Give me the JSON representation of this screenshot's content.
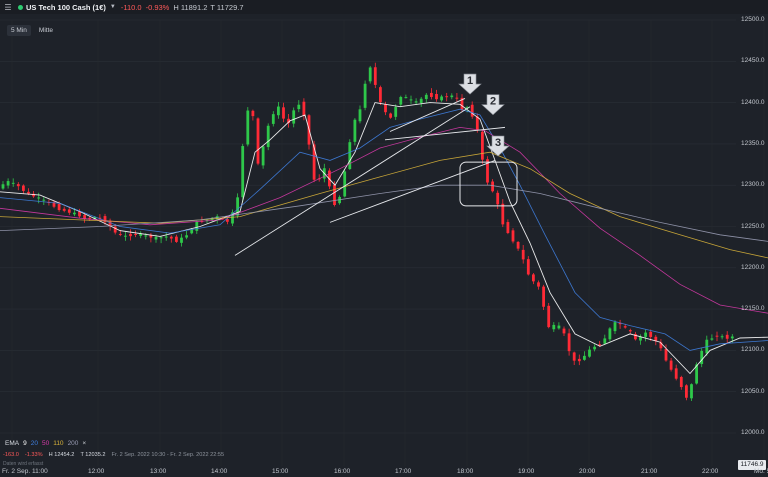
{
  "header": {
    "menu_icon": "hamburger-menu-icon",
    "status_color": "#2ecc71",
    "instrument": "US Tech 100 Cash (1€)",
    "change": "-110.0",
    "change_pct": "-0.93%",
    "high": "H 11891.2",
    "low": "T 11729.7"
  },
  "timeframes": [
    {
      "label": "5 Min",
      "active": true
    },
    {
      "label": "Mitte",
      "active": false
    }
  ],
  "legend": {
    "ema_label": "EMA",
    "periods": [
      {
        "value": "9",
        "color": "#ffffff"
      },
      {
        "value": "20",
        "color": "#3f7fe0"
      },
      {
        "value": "50",
        "color": "#d63aa8"
      },
      {
        "value": "110",
        "color": "#d8b23a"
      },
      {
        "value": "200",
        "color": "#9a9db5"
      }
    ],
    "close_glyph": "×"
  },
  "stats": {
    "change": "-163.0",
    "change_pct": "-1.33%",
    "high": "H 12454.2",
    "low": "T 12035.2",
    "range": "Fr. 2 Sep. 2022 10:30 - Fr. 2 Sep. 2022 22:55"
  },
  "note": "Daten wird erfasst",
  "last_price": "11746.9",
  "chart_data": {
    "type": "candlestick",
    "interval": "5 Min",
    "x_labels": [
      "Fr. 2 Sep. 11:00",
      "12:00",
      "13:00",
      "14:00",
      "15:00",
      "16:00",
      "17:00",
      "18:00",
      "19:00",
      "20:00",
      "21:00",
      "22:00",
      "Mo. 5"
    ],
    "y_ticks": [
      "12500.0",
      "12450.0",
      "12400.0",
      "12350.0",
      "12300.0",
      "12250.0",
      "12200.0",
      "12150.0",
      "12100.0",
      "12050.0",
      "12000.0"
    ],
    "ylim": [
      11990,
      12510
    ],
    "colors": {
      "up": "#2ec84a",
      "down": "#ff2a36"
    },
    "path": [
      [
        0,
        12295
      ],
      [
        10,
        12305
      ],
      [
        20,
        12300
      ],
      [
        30,
        12290
      ],
      [
        40,
        12285
      ],
      [
        50,
        12280
      ],
      [
        60,
        12272
      ],
      [
        70,
        12268
      ],
      [
        80,
        12265
      ],
      [
        90,
        12258
      ],
      [
        100,
        12262
      ],
      [
        110,
        12255
      ],
      [
        120,
        12240
      ],
      [
        130,
        12238
      ],
      [
        140,
        12242
      ],
      [
        150,
        12238
      ],
      [
        160,
        12236
      ],
      [
        170,
        12238
      ],
      [
        180,
        12232
      ],
      [
        190,
        12240
      ],
      [
        200,
        12255
      ],
      [
        210,
        12258
      ],
      [
        220,
        12262
      ],
      [
        230,
        12255
      ],
      [
        240,
        12275
      ],
      [
        245,
        12340
      ],
      [
        250,
        12390
      ],
      [
        255,
        12395
      ],
      [
        258,
        12360
      ],
      [
        262,
        12315
      ],
      [
        268,
        12360
      ],
      [
        275,
        12385
      ],
      [
        282,
        12395
      ],
      [
        290,
        12370
      ],
      [
        300,
        12400
      ],
      [
        305,
        12395
      ],
      [
        310,
        12370
      ],
      [
        315,
        12320
      ],
      [
        320,
        12290
      ],
      [
        325,
        12330
      ],
      [
        330,
        12310
      ],
      [
        335,
        12285
      ],
      [
        340,
        12270
      ],
      [
        345,
        12300
      ],
      [
        350,
        12330
      ],
      [
        355,
        12370
      ],
      [
        360,
        12385
      ],
      [
        365,
        12395
      ],
      [
        370,
        12440
      ],
      [
        375,
        12445
      ],
      [
        380,
        12410
      ],
      [
        385,
        12395
      ],
      [
        390,
        12385
      ],
      [
        395,
        12380
      ],
      [
        400,
        12400
      ],
      [
        405,
        12410
      ],
      [
        410,
        12405
      ],
      [
        420,
        12400
      ],
      [
        430,
        12410
      ],
      [
        440,
        12405
      ],
      [
        450,
        12408
      ],
      [
        458,
        12408
      ],
      [
        462,
        12400
      ],
      [
        466,
        12390
      ],
      [
        470,
        12395
      ],
      [
        475,
        12385
      ],
      [
        480,
        12370
      ],
      [
        484,
        12340
      ],
      [
        487,
        12320
      ],
      [
        490,
        12305
      ],
      [
        495,
        12295
      ],
      [
        500,
        12280
      ],
      [
        505,
        12255
      ],
      [
        510,
        12245
      ],
      [
        515,
        12235
      ],
      [
        520,
        12225
      ],
      [
        525,
        12215
      ],
      [
        530,
        12195
      ],
      [
        535,
        12185
      ],
      [
        540,
        12180
      ],
      [
        545,
        12170
      ],
      [
        548,
        12140
      ],
      [
        552,
        12128
      ],
      [
        558,
        12130
      ],
      [
        565,
        12128
      ],
      [
        572,
        12100
      ],
      [
        578,
        12085
      ],
      [
        585,
        12090
      ],
      [
        592,
        12100
      ],
      [
        598,
        12105
      ],
      [
        605,
        12108
      ],
      [
        610,
        12120
      ],
      [
        615,
        12130
      ],
      [
        620,
        12135
      ],
      [
        625,
        12130
      ],
      [
        630,
        12125
      ],
      [
        636,
        12120
      ],
      [
        640,
        12108
      ],
      [
        645,
        12120
      ],
      [
        650,
        12122
      ],
      [
        655,
        12115
      ],
      [
        660,
        12110
      ],
      [
        665,
        12100
      ],
      [
        670,
        12085
      ],
      [
        675,
        12075
      ],
      [
        680,
        12065
      ],
      [
        685,
        12055
      ],
      [
        690,
        12042
      ],
      [
        695,
        12060
      ],
      [
        700,
        12085
      ],
      [
        705,
        12100
      ],
      [
        710,
        12112
      ],
      [
        715,
        12115
      ],
      [
        720,
        12118
      ],
      [
        730,
        12115
      ],
      [
        740,
        12118
      ],
      [
        750,
        12117
      ],
      [
        760,
        12118
      ],
      [
        768,
        12117
      ]
    ],
    "ema": [
      {
        "period": "9",
        "color": "#ffffff",
        "points": [
          [
            0,
            12292
          ],
          [
            40,
            12288
          ],
          [
            80,
            12268
          ],
          [
            120,
            12245
          ],
          [
            160,
            12238
          ],
          [
            200,
            12250
          ],
          [
            240,
            12268
          ],
          [
            255,
            12340
          ],
          [
            270,
            12355
          ],
          [
            290,
            12378
          ],
          [
            305,
            12385
          ],
          [
            320,
            12320
          ],
          [
            335,
            12300
          ],
          [
            355,
            12340
          ],
          [
            375,
            12400
          ],
          [
            400,
            12395
          ],
          [
            430,
            12400
          ],
          [
            460,
            12398
          ],
          [
            480,
            12380
          ],
          [
            495,
            12330
          ],
          [
            510,
            12280
          ],
          [
            530,
            12230
          ],
          [
            550,
            12170
          ],
          [
            575,
            12120
          ],
          [
            600,
            12105
          ],
          [
            630,
            12120
          ],
          [
            660,
            12110
          ],
          [
            690,
            12072
          ],
          [
            710,
            12100
          ],
          [
            740,
            12115
          ],
          [
            768,
            12116
          ]
        ]
      },
      {
        "period": "20",
        "color": "#3f7fe0",
        "points": [
          [
            0,
            12285
          ],
          [
            60,
            12278
          ],
          [
            120,
            12250
          ],
          [
            170,
            12242
          ],
          [
            220,
            12252
          ],
          [
            260,
            12295
          ],
          [
            300,
            12340
          ],
          [
            330,
            12330
          ],
          [
            360,
            12345
          ],
          [
            390,
            12370
          ],
          [
            420,
            12380
          ],
          [
            460,
            12392
          ],
          [
            480,
            12385
          ],
          [
            500,
            12345
          ],
          [
            520,
            12300
          ],
          [
            545,
            12240
          ],
          [
            575,
            12170
          ],
          [
            600,
            12140
          ],
          [
            630,
            12130
          ],
          [
            665,
            12120
          ],
          [
            690,
            12100
          ],
          [
            720,
            12108
          ],
          [
            768,
            12112
          ]
        ]
      },
      {
        "period": "50",
        "color": "#d63aa8",
        "points": [
          [
            0,
            12272
          ],
          [
            80,
            12260
          ],
          [
            150,
            12252
          ],
          [
            220,
            12258
          ],
          [
            280,
            12285
          ],
          [
            340,
            12320
          ],
          [
            380,
            12345
          ],
          [
            420,
            12358
          ],
          [
            460,
            12370
          ],
          [
            485,
            12366
          ],
          [
            520,
            12340
          ],
          [
            560,
            12290
          ],
          [
            600,
            12248
          ],
          [
            640,
            12215
          ],
          [
            680,
            12180
          ],
          [
            720,
            12155
          ],
          [
            768,
            12145
          ]
        ]
      },
      {
        "period": "110",
        "color": "#d8b23a",
        "points": [
          [
            0,
            12262
          ],
          [
            80,
            12258
          ],
          [
            160,
            12254
          ],
          [
            240,
            12262
          ],
          [
            320,
            12290
          ],
          [
            380,
            12310
          ],
          [
            440,
            12330
          ],
          [
            490,
            12340
          ],
          [
            530,
            12320
          ],
          [
            570,
            12290
          ],
          [
            620,
            12262
          ],
          [
            680,
            12240
          ],
          [
            730,
            12222
          ],
          [
            768,
            12212
          ]
        ]
      },
      {
        "period": "200",
        "color": "#9a9db5",
        "points": [
          [
            0,
            12245
          ],
          [
            100,
            12250
          ],
          [
            200,
            12258
          ],
          [
            300,
            12275
          ],
          [
            380,
            12290
          ],
          [
            440,
            12300
          ],
          [
            490,
            12300
          ],
          [
            540,
            12290
          ],
          [
            600,
            12272
          ],
          [
            660,
            12255
          ],
          [
            720,
            12240
          ],
          [
            768,
            12232
          ]
        ]
      }
    ],
    "trendlines": [
      {
        "from": [
          235,
          12215
        ],
        "to": [
          470,
          12395
        ]
      },
      {
        "from": [
          330,
          12255
        ],
        "to": [
          495,
          12330
        ]
      },
      {
        "from": [
          385,
          12355
        ],
        "to": [
          505,
          12370
        ]
      },
      {
        "from": [
          390,
          12365
        ],
        "to": [
          465,
          12405
        ]
      }
    ],
    "annotations": [
      {
        "label": "1",
        "x": 470,
        "y": 12420
      },
      {
        "label": "2",
        "x": 493,
        "y": 12395
      },
      {
        "label": "3",
        "x": 498,
        "y": 12345
      }
    ],
    "highlight_box": {
      "x0": 460,
      "x1": 517,
      "y0": 12328,
      "y1": 12275
    }
  }
}
